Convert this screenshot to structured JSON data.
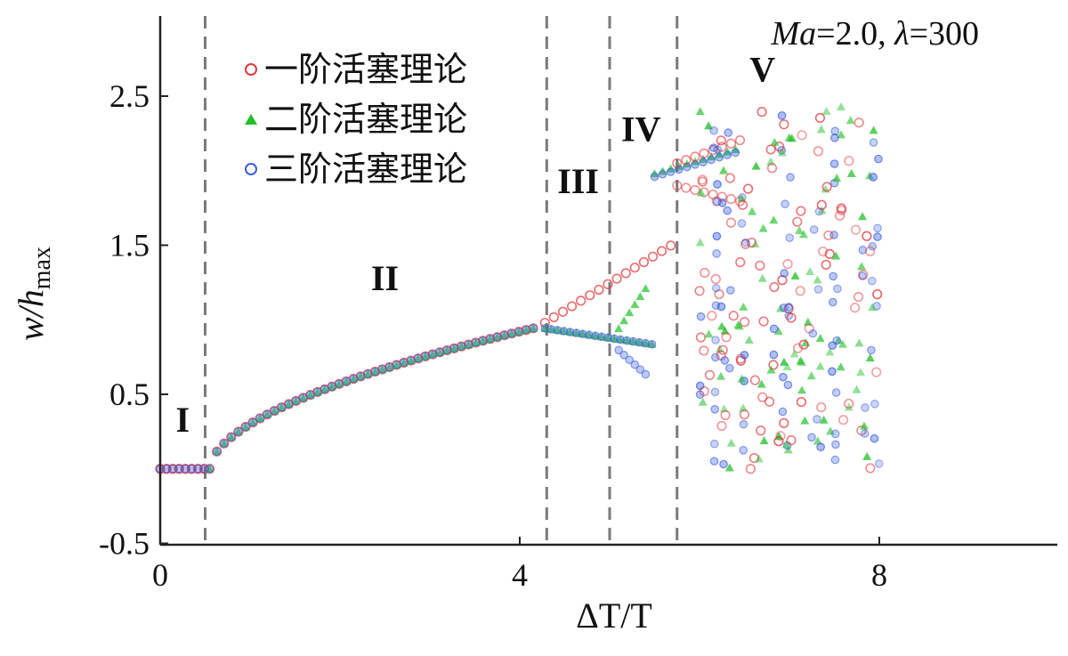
{
  "chart_data": {
    "type": "scatter",
    "xlim": [
      0,
      10
    ],
    "ylim": [
      -0.5,
      2.75
    ],
    "x_ticks": [
      0,
      4,
      8
    ],
    "x_tick_labels": [
      "0",
      "4",
      "8"
    ],
    "y_ticks": [
      -0.5,
      0.5,
      1.5,
      2.5
    ],
    "y_tick_labels": [
      "-0.5",
      "0.5",
      "1.5",
      "2.5"
    ],
    "xlabel": "ΔT/T",
    "ylabel_main": "w/h",
    "ylabel_sub": "max",
    "annotation": "Ma=2.0, λ=300",
    "annotation_parts": [
      "Ma",
      "=2.0, ",
      "λ",
      "=300"
    ],
    "grid": false,
    "legend_position": "top-left",
    "region_boundaries": [
      0.5,
      4.3,
      5.0,
      5.75
    ],
    "regions": [
      {
        "label": "I",
        "x": 0.25,
        "y": 0.25
      },
      {
        "label": "II",
        "x": 2.5,
        "y": 1.2
      },
      {
        "label": "III",
        "x": 4.65,
        "y": 1.85
      },
      {
        "label": "IV",
        "x": 5.35,
        "y": 2.2
      },
      {
        "label": "V",
        "x": 6.7,
        "y": 2.6
      }
    ],
    "series": [
      {
        "name": "一阶活塞理论",
        "marker": "circle",
        "color": "#e0393e",
        "order": 1
      },
      {
        "name": "二阶活塞理论",
        "marker": "triangle",
        "color": "#22c02a",
        "order": 2
      },
      {
        "name": "三阶活塞理论",
        "marker": "circle",
        "color": "#3b5fe0",
        "order": 3
      }
    ]
  },
  "colors": {
    "axis": "#222222",
    "dashed": "#7a7a7a",
    "first_order": "#e0393e",
    "second_order": "#22c02a",
    "third_order": "#3b5fe0"
  }
}
